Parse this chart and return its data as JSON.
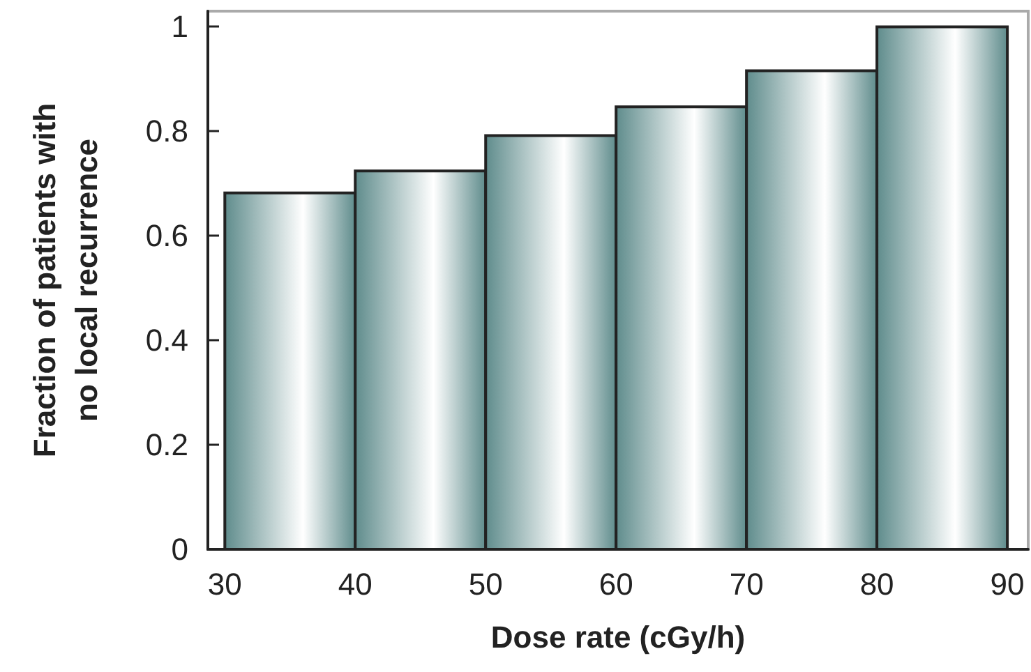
{
  "chart_data": {
    "type": "histogram",
    "xlabel": "Dose rate (cGy/h)",
    "ylabel": "Fraction of patients with\nno local recurrence",
    "bins": [
      30,
      40,
      50,
      60,
      70,
      80,
      90
    ],
    "values": [
      0.682,
      0.724,
      0.792,
      0.847,
      0.916,
      1.0
    ],
    "color": "#5f8c8c",
    "xlim": [
      28.7,
      91.6
    ],
    "xticks": [
      30,
      40,
      50,
      60,
      70,
      80,
      90
    ],
    "ylim": [
      0,
      1.03
    ],
    "yticks": [
      0,
      0.2,
      0.4,
      0.6,
      0.8,
      1
    ],
    "grid": false
  }
}
